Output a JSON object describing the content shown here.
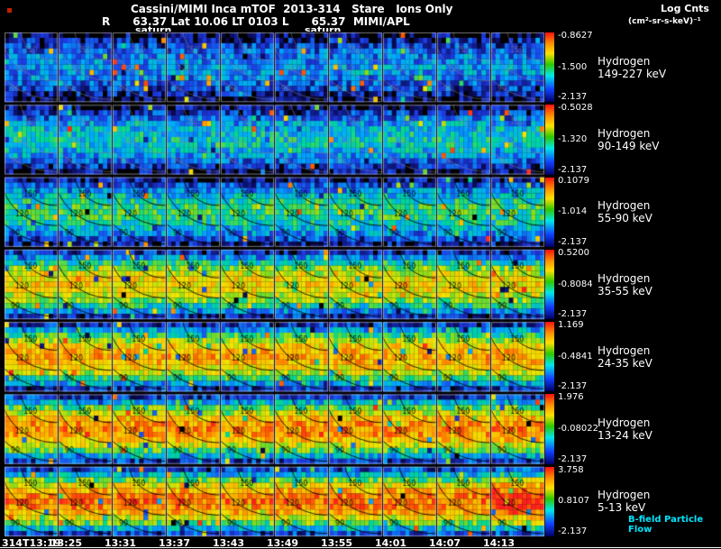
{
  "header": {
    "title": "Cassini/MIMI Inca mTOF  2013-314   Stare   Ions Only",
    "log_cnts": "Log Cnts",
    "position_line": "R      63.37 Lat 10.06 LT 0103 L      65.37  MIMI/APL",
    "units": "(cm²-sr-s-keV)⁻¹",
    "body_label_1": "saturn",
    "body_label_2": "saturn"
  },
  "footer": {
    "annotation": "B-field Particle Flow"
  },
  "chart_data": {
    "type": "heatmap",
    "title": "Cassini/MIMI Inca mTOF 2013-314 Stare Ions Only",
    "instrument": "MIMI/APL",
    "mode": "Stare",
    "filter": "Ions Only",
    "day": "2013-314",
    "spacecraft_position": {
      "R": "63.37",
      "Lat": "10.06",
      "LT": "0103",
      "L": "65.37"
    },
    "target_body": "saturn",
    "colorbar_label": "Log Cnts (cm²-sr-s-keV)⁻¹",
    "x_ticks": [
      "314T13:19",
      "13:25",
      "13:31",
      "13:37",
      "13:43",
      "13:49",
      "13:55",
      "14:01",
      "14:07",
      "14:13"
    ],
    "contour_levels": [
      "150",
      "120",
      "90"
    ],
    "rows": [
      {
        "species": "Hydrogen",
        "energy_range": "149-227 keV",
        "scale_top": "-0.8627",
        "scale_mid": "-1.500",
        "scale_bottom": "-2.137",
        "intensity": 0.3
      },
      {
        "species": "Hydrogen",
        "energy_range": "90-149 keV",
        "scale_top": "-0.5028",
        "scale_mid": "-1.320",
        "scale_bottom": "-2.137",
        "intensity": 0.4
      },
      {
        "species": "Hydrogen",
        "energy_range": "55-90 keV",
        "scale_top": "0.1079",
        "scale_mid": "-1.014",
        "scale_bottom": "-2.137",
        "intensity": 0.48
      },
      {
        "species": "Hydrogen",
        "energy_range": "35-55 keV",
        "scale_top": "0.5200",
        "scale_mid": "-0.8084",
        "scale_bottom": "-2.137",
        "intensity": 0.72
      },
      {
        "species": "Hydrogen",
        "energy_range": "24-35 keV",
        "scale_top": "1.169",
        "scale_mid": "-0.4841",
        "scale_bottom": "-2.137",
        "intensity": 0.8
      },
      {
        "species": "Hydrogen",
        "energy_range": "13-24 keV",
        "scale_top": "1.976",
        "scale_mid": "-0.08022",
        "scale_bottom": "-2.137",
        "intensity": 0.85
      },
      {
        "species": "Hydrogen",
        "energy_range": "5-13 keV",
        "scale_top": "3.758",
        "scale_mid": "0.8107",
        "scale_bottom": "-2.137",
        "intensity": 0.88
      }
    ],
    "colorbar_colors": [
      "#ff1010",
      "#ff9000",
      "#ffe000",
      "#30c800",
      "#00e8e8",
      "#1040ff",
      "#000060"
    ],
    "annotation_color": "#00e5ff",
    "grid": true,
    "layout": {
      "panel_rows": 7,
      "panel_cols": 10
    }
  }
}
